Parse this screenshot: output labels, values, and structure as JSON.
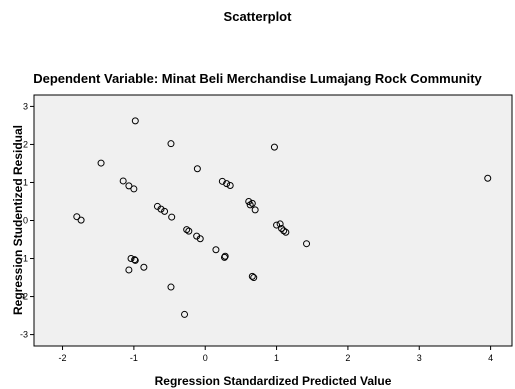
{
  "chart_data": {
    "type": "scatter",
    "title": "Scatterplot",
    "subtitle": "Dependent Variable: Minat Beli Merchandise Lumajang Rock Community",
    "xlabel": "Regression Standardized Predicted Value",
    "ylabel": "Regression Studentized Residual",
    "xlim": [
      -2.4,
      4.3
    ],
    "ylim": [
      -3.3,
      3.3
    ],
    "xticks": [
      -2,
      -1,
      0,
      1,
      2,
      3,
      4
    ],
    "yticks": [
      3,
      2,
      1,
      0,
      -1,
      -2,
      -3
    ],
    "grid": false,
    "legend": "none",
    "colors": {
      "plot_background": "#f0f0f0",
      "marker_stroke": "#000000",
      "axis": "#000000"
    },
    "points": [
      {
        "x": -0.98,
        "y": 2.62
      },
      {
        "x": -0.48,
        "y": 2.02
      },
      {
        "x": 0.97,
        "y": 1.93
      },
      {
        "x": -1.46,
        "y": 1.51
      },
      {
        "x": -0.11,
        "y": 1.36
      },
      {
        "x": -1.15,
        "y": 1.04
      },
      {
        "x": -1.07,
        "y": 0.91
      },
      {
        "x": -1.0,
        "y": 0.83
      },
      {
        "x": 0.24,
        "y": 1.03
      },
      {
        "x": 0.3,
        "y": 0.97
      },
      {
        "x": 0.35,
        "y": 0.92
      },
      {
        "x": 3.96,
        "y": 1.11
      },
      {
        "x": -0.67,
        "y": 0.37
      },
      {
        "x": -0.62,
        "y": 0.3
      },
      {
        "x": -0.57,
        "y": 0.24
      },
      {
        "x": -0.47,
        "y": 0.09
      },
      {
        "x": 0.61,
        "y": 0.5
      },
      {
        "x": 0.63,
        "y": 0.41
      },
      {
        "x": 0.66,
        "y": 0.45
      },
      {
        "x": 0.7,
        "y": 0.28
      },
      {
        "x": -1.8,
        "y": 0.1
      },
      {
        "x": -1.74,
        "y": 0.01
      },
      {
        "x": 1.0,
        "y": -0.12
      },
      {
        "x": 1.05,
        "y": -0.09
      },
      {
        "x": 1.07,
        "y": -0.21
      },
      {
        "x": 1.1,
        "y": -0.27
      },
      {
        "x": 1.13,
        "y": -0.31
      },
      {
        "x": -0.26,
        "y": -0.24
      },
      {
        "x": -0.23,
        "y": -0.28
      },
      {
        "x": -0.12,
        "y": -0.41
      },
      {
        "x": -0.07,
        "y": -0.48
      },
      {
        "x": 1.42,
        "y": -0.61
      },
      {
        "x": 0.15,
        "y": -0.77
      },
      {
        "x": 0.28,
        "y": -0.94
      },
      {
        "x": 0.27,
        "y": -0.97
      },
      {
        "x": -1.04,
        "y": -1.0
      },
      {
        "x": -0.99,
        "y": -1.03
      },
      {
        "x": -0.98,
        "y": -1.05
      },
      {
        "x": -0.86,
        "y": -1.23
      },
      {
        "x": -1.07,
        "y": -1.3
      },
      {
        "x": 0.66,
        "y": -1.47
      },
      {
        "x": 0.68,
        "y": -1.5
      },
      {
        "x": -0.48,
        "y": -1.75
      },
      {
        "x": -0.29,
        "y": -2.47
      }
    ]
  }
}
